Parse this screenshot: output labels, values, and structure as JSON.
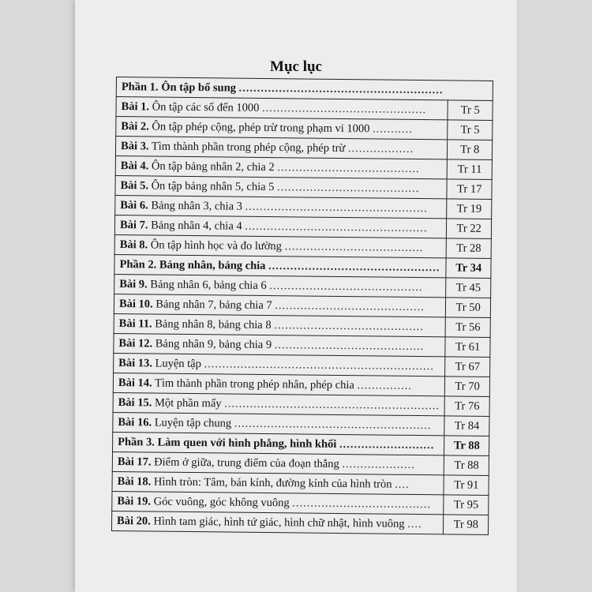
{
  "title": "Mục lục",
  "rows": [
    {
      "label": "Phần 1.",
      "text": "Ôn tập bổ sung",
      "page": "",
      "section": true
    },
    {
      "label": "Bài 1.",
      "text": "Ôn tập các số đến 1000",
      "page": "Tr 5"
    },
    {
      "label": "Bài 2.",
      "text": "Ôn tập phép cộng, phép trừ trong phạm vi 1000",
      "page": "Tr 5"
    },
    {
      "label": "Bài 3.",
      "text": "Tìm thành phần trong phép cộng, phép trừ",
      "page": "Tr 8"
    },
    {
      "label": "Bài 4.",
      "text": "Ôn tập bảng nhân 2, chia 2",
      "page": "Tr 11"
    },
    {
      "label": "Bài 5.",
      "text": "Ôn tập bảng nhân 5, chia 5",
      "page": "Tr 17"
    },
    {
      "label": "Bài 6.",
      "text": "Bảng nhân 3, chia 3",
      "page": "Tr 19"
    },
    {
      "label": "Bài 7.",
      "text": "Bảng nhân 4, chia 4",
      "page": "Tr 22"
    },
    {
      "label": "Bài 8.",
      "text": "Ôn tập hình học và đo lường",
      "page": "Tr 28"
    },
    {
      "label": "Phần 2.",
      "text": "Bảng nhân, bảng chia",
      "page": "Tr 34",
      "section": true
    },
    {
      "label": "Bài 9.",
      "text": "Bảng nhân 6, bảng chia 6",
      "page": "Tr 45"
    },
    {
      "label": "Bài 10.",
      "text": "Bảng nhân 7, bảng chia 7",
      "page": "Tr 50"
    },
    {
      "label": "Bài 11.",
      "text": "Bảng nhân 8, bảng chia 8",
      "page": "Tr 56"
    },
    {
      "label": "Bài 12.",
      "text": "Bảng nhân 9, bảng chia 9",
      "page": "Tr 61"
    },
    {
      "label": "Bài 13.",
      "text": "Luyện tập",
      "page": "Tr 67"
    },
    {
      "label": "Bài 14.",
      "text": "Tìm thành phần trong phép nhân, phép chia",
      "page": "Tr 70"
    },
    {
      "label": "Bài 15.",
      "text": "Một phần mấy",
      "page": "Tr 76"
    },
    {
      "label": "Bài 16.",
      "text": "Luyện tập chung",
      "page": "Tr 84"
    },
    {
      "label": "Phần 3.",
      "text": "Làm quen với hình phẳng, hình khối",
      "page": "Tr 88",
      "section": true
    },
    {
      "label": "Bài 17.",
      "text": "Điểm ở giữa, trung điểm của đoạn thẳng",
      "page": "Tr 88"
    },
    {
      "label": "Bài 18.",
      "text": "Hình tròn: Tâm, bán kính, đường kính của hình tròn",
      "page": "Tr 91"
    },
    {
      "label": "Bài 19.",
      "text": "Góc vuông, góc không vuông",
      "page": "Tr 95"
    },
    {
      "label": "Bài 20.",
      "text": "Hình tam giác, hình tứ giác, hình chữ nhật, hình vuông",
      "page": "Tr 98"
    }
  ]
}
